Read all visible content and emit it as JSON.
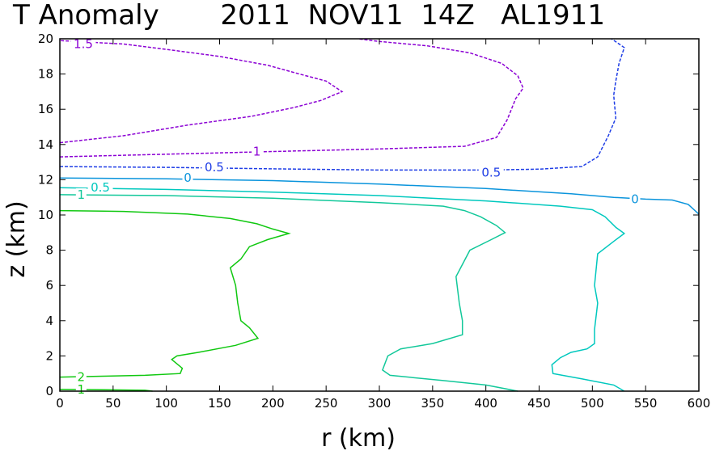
{
  "chart_data": {
    "type": "contour",
    "title": "T Anomaly       2011  NOV11  14Z   AL1911",
    "xlabel": "r  (km)",
    "ylabel": "z  (km)",
    "xlim": [
      0,
      600
    ],
    "ylim": [
      0,
      20
    ],
    "xticks": [
      0,
      50,
      100,
      150,
      200,
      250,
      300,
      350,
      400,
      450,
      500,
      550,
      600
    ],
    "yticks": [
      0,
      2,
      4,
      6,
      8,
      10,
      12,
      14,
      16,
      18,
      20
    ],
    "grid": false,
    "contours": [
      {
        "level": "1.5",
        "color": "#8B00D4",
        "dash": "dashed",
        "labels": [
          {
            "text": "1.5",
            "x": 22,
            "y": 19.7
          }
        ],
        "points": [
          [
            0,
            14.1
          ],
          [
            60,
            14.5
          ],
          [
            120,
            15.1
          ],
          [
            180,
            15.6
          ],
          [
            220,
            16.1
          ],
          [
            245,
            16.5
          ],
          [
            265,
            17.0
          ],
          [
            250,
            17.6
          ],
          [
            225,
            18.0
          ],
          [
            195,
            18.5
          ],
          [
            150,
            19.0
          ],
          [
            100,
            19.4
          ],
          [
            60,
            19.7
          ],
          [
            0,
            19.9
          ]
        ]
      },
      {
        "level": "1",
        "color": "#8B00D4",
        "dash": "dashed",
        "labels": [
          {
            "text": "1",
            "x": 185,
            "y": 13.6
          }
        ],
        "points": [
          [
            0,
            13.3
          ],
          [
            100,
            13.45
          ],
          [
            200,
            13.6
          ],
          [
            300,
            13.75
          ],
          [
            380,
            13.9
          ],
          [
            410,
            14.4
          ],
          [
            420,
            15.4
          ],
          [
            428,
            16.6
          ],
          [
            435,
            17.2
          ],
          [
            430,
            17.9
          ],
          [
            415,
            18.6
          ],
          [
            385,
            19.2
          ],
          [
            345,
            19.6
          ],
          [
            300,
            19.85
          ],
          [
            280,
            20.0
          ]
        ]
      },
      {
        "level": "0.5",
        "color": "#1E3DE6",
        "dash": "dashed",
        "labels": [
          {
            "text": "0.5",
            "x": 145,
            "y": 12.7
          },
          {
            "text": "0.5",
            "x": 405,
            "y": 12.4
          }
        ],
        "points": [
          [
            0,
            12.75
          ],
          [
            100,
            12.7
          ],
          [
            200,
            12.62
          ],
          [
            300,
            12.55
          ],
          [
            400,
            12.55
          ],
          [
            450,
            12.6
          ],
          [
            490,
            12.75
          ],
          [
            505,
            13.3
          ],
          [
            515,
            14.5
          ],
          [
            522,
            15.5
          ],
          [
            520,
            16.8
          ],
          [
            522,
            17.6
          ],
          [
            525,
            18.6
          ],
          [
            530,
            19.5
          ],
          [
            518,
            20.0
          ]
        ]
      },
      {
        "level": "0",
        "color": "#0A94DC",
        "dash": "solid",
        "labels": [
          {
            "text": "0",
            "x": 120,
            "y": 12.1
          },
          {
            "text": "0",
            "x": 540,
            "y": 10.9
          }
        ],
        "points": [
          [
            0,
            12.1
          ],
          [
            100,
            12.05
          ],
          [
            200,
            11.95
          ],
          [
            300,
            11.75
          ],
          [
            400,
            11.5
          ],
          [
            480,
            11.2
          ],
          [
            520,
            11.0
          ],
          [
            550,
            10.9
          ],
          [
            575,
            10.85
          ],
          [
            590,
            10.6
          ],
          [
            600,
            10.05
          ]
        ]
      },
      {
        "level": "0.5",
        "color": "#00C8BE",
        "dash": "solid",
        "labels": [
          {
            "text": "0.5",
            "x": 38,
            "y": 11.55
          }
        ],
        "points": [
          [
            0,
            11.55
          ],
          [
            100,
            11.45
          ],
          [
            200,
            11.3
          ],
          [
            300,
            11.1
          ],
          [
            400,
            10.8
          ],
          [
            470,
            10.5
          ],
          [
            500,
            10.3
          ],
          [
            512,
            9.9
          ],
          [
            522,
            9.3
          ],
          [
            530,
            8.95
          ],
          [
            520,
            8.5
          ],
          [
            505,
            7.8
          ],
          [
            502,
            6.0
          ],
          [
            505,
            5.0
          ],
          [
            502,
            3.5
          ],
          [
            502,
            2.7
          ],
          [
            495,
            2.4
          ],
          [
            480,
            2.2
          ],
          [
            470,
            1.9
          ],
          [
            462,
            1.5
          ],
          [
            463,
            1.0
          ],
          [
            490,
            0.7
          ],
          [
            520,
            0.35
          ],
          [
            530,
            0.0
          ]
        ]
      },
      {
        "level": "1",
        "color": "#12C89A",
        "dash": "solid",
        "labels": [
          {
            "text": "1",
            "x": 20,
            "y": 11.15
          }
        ],
        "points": [
          [
            0,
            11.15
          ],
          [
            100,
            11.1
          ],
          [
            200,
            10.95
          ],
          [
            300,
            10.7
          ],
          [
            360,
            10.5
          ],
          [
            380,
            10.25
          ],
          [
            395,
            9.9
          ],
          [
            410,
            9.4
          ],
          [
            418,
            9.0
          ],
          [
            405,
            8.6
          ],
          [
            385,
            8.0
          ],
          [
            372,
            6.5
          ],
          [
            375,
            5.0
          ],
          [
            378,
            4.0
          ],
          [
            378,
            3.2
          ],
          [
            350,
            2.7
          ],
          [
            320,
            2.4
          ],
          [
            308,
            2.0
          ],
          [
            303,
            1.2
          ],
          [
            310,
            0.9
          ],
          [
            360,
            0.6
          ],
          [
            400,
            0.35
          ],
          [
            430,
            0.0
          ]
        ]
      },
      {
        "level": "2",
        "color": "#10C810",
        "dash": "solid",
        "labels": [
          {
            "text": "2",
            "x": 20,
            "y": 0.8
          },
          {
            "text": "1",
            "x": 20,
            "y": 0.1
          }
        ],
        "points": [
          [
            0,
            10.25
          ],
          [
            60,
            10.2
          ],
          [
            120,
            10.05
          ],
          [
            160,
            9.8
          ],
          [
            185,
            9.5
          ],
          [
            200,
            9.2
          ],
          [
            215,
            8.95
          ],
          [
            195,
            8.6
          ],
          [
            178,
            8.2
          ],
          [
            170,
            7.5
          ],
          [
            160,
            7.0
          ],
          [
            165,
            6.0
          ],
          [
            167,
            5.0
          ],
          [
            170,
            4.0
          ],
          [
            178,
            3.6
          ],
          [
            186,
            3.0
          ],
          [
            165,
            2.6
          ],
          [
            130,
            2.2
          ],
          [
            110,
            2.0
          ],
          [
            105,
            1.8
          ],
          [
            115,
            1.3
          ],
          [
            113,
            1.0
          ],
          [
            80,
            0.9
          ],
          [
            40,
            0.85
          ],
          [
            0,
            0.8
          ]
        ]
      },
      {
        "level": "1",
        "color": "#10C810",
        "dash": "solid",
        "labels": [],
        "points": [
          [
            0,
            0.1
          ],
          [
            40,
            0.08
          ],
          [
            80,
            0.05
          ],
          [
            87,
            0.0
          ]
        ]
      }
    ]
  }
}
